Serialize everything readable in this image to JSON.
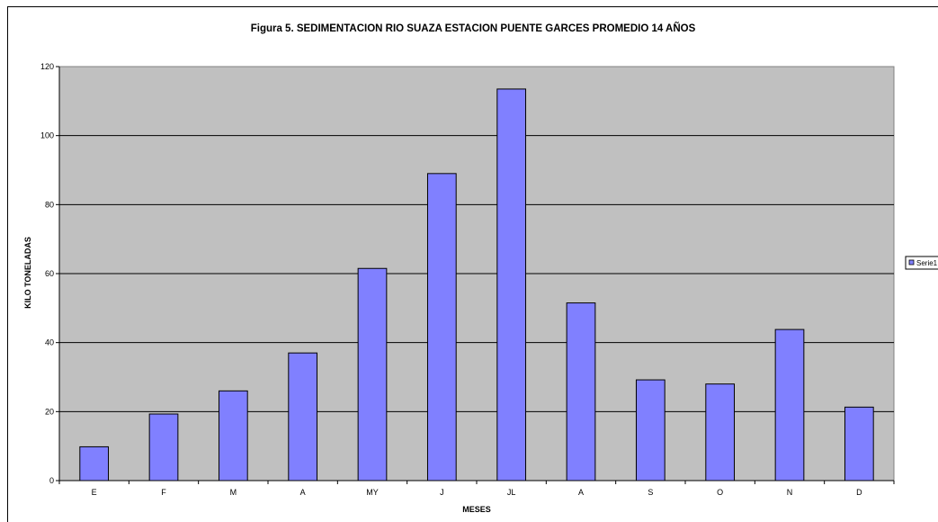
{
  "chart_data": {
    "type": "bar",
    "title": "Figura 5. SEDIMENTACION RIO SUAZA ESTACION PUENTE GARCES  PROMEDIO 14 AÑOS",
    "xlabel": "MESES",
    "ylabel": "KILO TONELADAS",
    "categories": [
      "E",
      "F",
      "M",
      "A",
      "MY",
      "J",
      "JL",
      "A",
      "S",
      "O",
      "N",
      "D"
    ],
    "series": [
      {
        "name": "Serie1",
        "values": [
          9.8,
          19.3,
          26.0,
          37.0,
          61.5,
          89.0,
          113.5,
          51.5,
          29.2,
          28.0,
          43.8,
          21.3
        ],
        "color": "#8080ff"
      }
    ],
    "ylim": [
      0,
      120
    ],
    "yticks": [
      "0",
      "20",
      "40",
      "60",
      "80",
      "100",
      "120"
    ],
    "grid": true,
    "legend": "right",
    "plot_background": "#c0c0c0"
  }
}
